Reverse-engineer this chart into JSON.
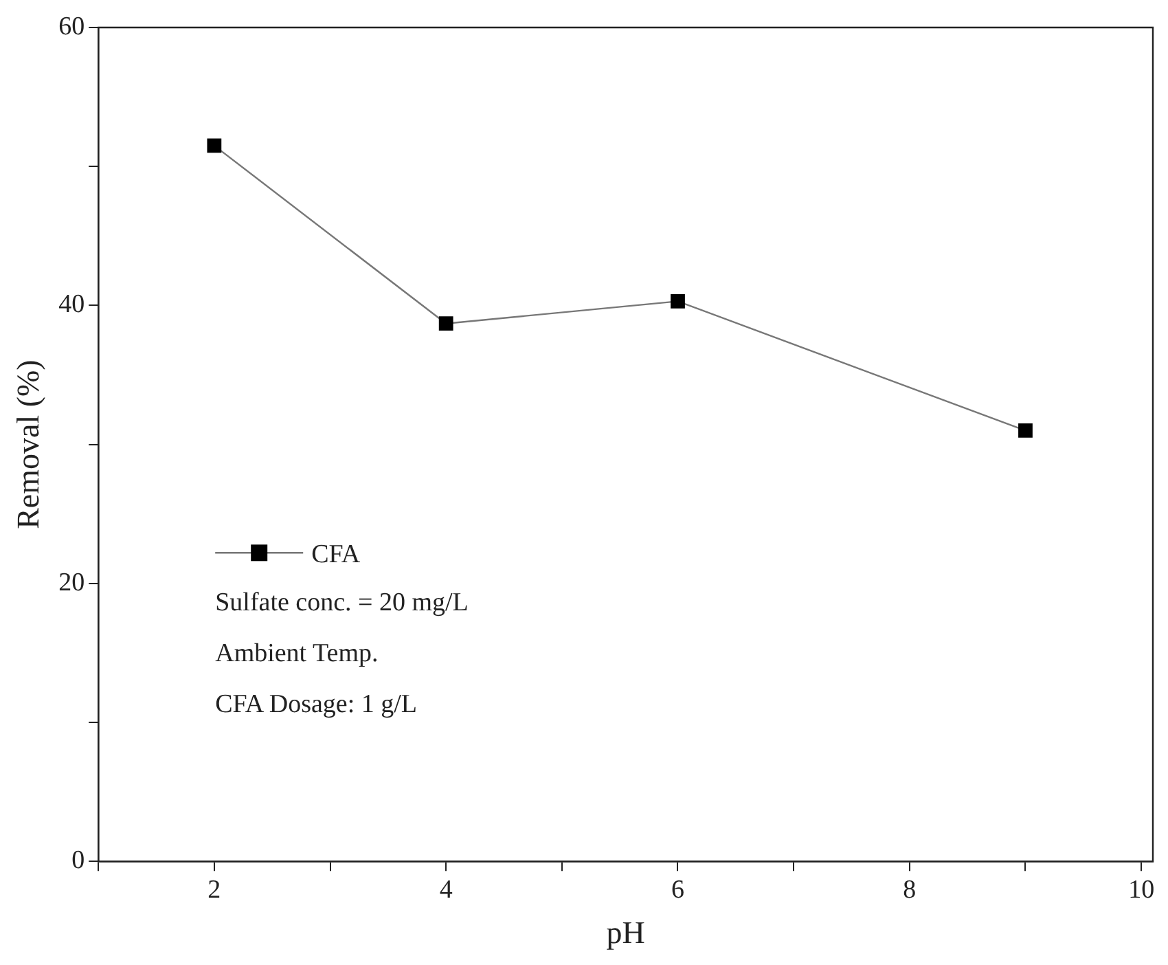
{
  "chart_data": {
    "type": "line",
    "xlabel": "pH",
    "ylabel": "Removal (%)",
    "x": [
      2,
      4,
      6,
      9
    ],
    "series": [
      {
        "name": "CFA",
        "color": "#000000",
        "values": [
          51.5,
          38.7,
          40.3,
          31.0
        ]
      }
    ],
    "xlim": [
      1,
      10.1
    ],
    "xticks": [
      {
        "value": 1,
        "label": null
      },
      2,
      {
        "value": 3,
        "label": null
      },
      4,
      {
        "value": 5,
        "label": null
      },
      6,
      {
        "value": 7,
        "label": null
      },
      8,
      {
        "value": 9,
        "label": null
      },
      10
    ],
    "ylim": [
      0,
      60
    ],
    "yticks": [
      0,
      {
        "value": 10,
        "label": null
      },
      20,
      {
        "value": 30,
        "label": null
      },
      40,
      {
        "value": 50,
        "label": null
      },
      60
    ],
    "grid": false,
    "legend": "left",
    "marker": "square",
    "line_style": "solid",
    "annotations": [
      "Sulfate conc. = 20 mg/L",
      "Ambient Temp.",
      "CFA Dosage: 1 g/L"
    ]
  }
}
